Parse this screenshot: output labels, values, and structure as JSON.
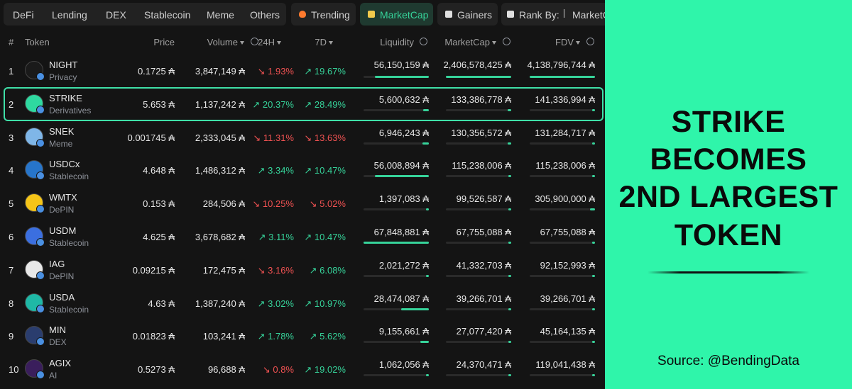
{
  "tabs": {
    "categories": [
      "DeFi",
      "Lending",
      "DEX",
      "Stablecoin",
      "Meme",
      "Others"
    ],
    "filters": [
      "Trending",
      "MarketCap",
      "Gainers"
    ],
    "active_filter": 1,
    "rank_by_label": "Rank By:",
    "rank_by_value": "MarketCap"
  },
  "table": {
    "columns": [
      "#",
      "Token",
      "Price",
      "Volume",
      "24H",
      "7D",
      "Liquidity",
      "MarketCap",
      "FDV"
    ],
    "highlighted_row": 1,
    "rows": [
      {
        "rank": "1",
        "symbol": "NIGHT",
        "category": "Privacy",
        "price": "0.1725 ₳",
        "volume": "3,847,149 ₳",
        "change_24h": "↘ 1.93%",
        "change_7d": "↗ 19.67%",
        "liquidity": "56,150,159 ₳",
        "market_cap": "2,406,578,425 ₳",
        "fdv": "4,138,796,744 ₳"
      },
      {
        "rank": "2",
        "symbol": "STRIKE",
        "category": "Derivatives",
        "price": "5.653 ₳",
        "volume": "1,137,242 ₳",
        "change_24h": "↗ 20.37%",
        "change_7d": "↗ 28.49%",
        "liquidity": "5,600,632 ₳",
        "market_cap": "133,386,778 ₳",
        "fdv": "141,336,994 ₳"
      },
      {
        "rank": "3",
        "symbol": "SNEK",
        "category": "Meme",
        "price": "0.001745 ₳",
        "volume": "2,333,045 ₳",
        "change_24h": "↘ 11.31%",
        "change_7d": "↘ 13.63%",
        "liquidity": "6,946,243 ₳",
        "market_cap": "130,356,572 ₳",
        "fdv": "131,284,717 ₳"
      },
      {
        "rank": "4",
        "symbol": "USDCx",
        "category": "Stablecoin",
        "price": "4.648 ₳",
        "volume": "1,486,312 ₳",
        "change_24h": "↗ 3.34%",
        "change_7d": "↗ 10.47%",
        "liquidity": "56,008,894 ₳",
        "market_cap": "115,238,006 ₳",
        "fdv": "115,238,006 ₳"
      },
      {
        "rank": "5",
        "symbol": "WMTX",
        "category": "DePIN",
        "price": "0.153 ₳",
        "volume": "284,506 ₳",
        "change_24h": "↘ 10.25%",
        "change_7d": "↘ 5.02%",
        "liquidity": "1,397,083 ₳",
        "market_cap": "99,526,587 ₳",
        "fdv": "305,900,000 ₳"
      },
      {
        "rank": "6",
        "symbol": "USDM",
        "category": "Stablecoin",
        "price": "4.625 ₳",
        "volume": "3,678,682 ₳",
        "change_24h": "↗ 3.11%",
        "change_7d": "↗ 10.47%",
        "liquidity": "67,848,881 ₳",
        "market_cap": "67,755,088 ₳",
        "fdv": "67,755,088 ₳"
      },
      {
        "rank": "7",
        "symbol": "IAG",
        "category": "DePIN",
        "price": "0.09215 ₳",
        "volume": "172,475 ₳",
        "change_24h": "↘ 3.16%",
        "change_7d": "↗ 6.08%",
        "liquidity": "2,021,272 ₳",
        "market_cap": "41,332,703 ₳",
        "fdv": "92,152,993 ₳"
      },
      {
        "rank": "8",
        "symbol": "USDA",
        "category": "Stablecoin",
        "price": "4.63 ₳",
        "volume": "1,387,240 ₳",
        "change_24h": "↗ 3.02%",
        "change_7d": "↗ 10.97%",
        "liquidity": "28,474,087 ₳",
        "market_cap": "39,266,701 ₳",
        "fdv": "39,266,701 ₳"
      },
      {
        "rank": "9",
        "symbol": "MIN",
        "category": "DEX",
        "price": "0.01823 ₳",
        "volume": "103,241 ₳",
        "change_24h": "↗ 1.78%",
        "change_7d": "↗ 5.62%",
        "liquidity": "9,155,661 ₳",
        "market_cap": "27,077,420 ₳",
        "fdv": "45,164,135 ₳"
      },
      {
        "rank": "10",
        "symbol": "AGIX",
        "category": "AI",
        "price": "0.5273 ₳",
        "volume": "96,688 ₳",
        "change_24h": "↘ 0.8%",
        "change_7d": "↗ 19.02%",
        "liquidity": "1,062,056 ₳",
        "market_cap": "24,370,471 ₳",
        "fdv": "119,041,438 ₳"
      }
    ]
  },
  "headline": [
    "STRIKE",
    "BECOMES",
    "2ND LARGEST",
    "TOKEN"
  ],
  "source": "Source: @BendingData"
}
